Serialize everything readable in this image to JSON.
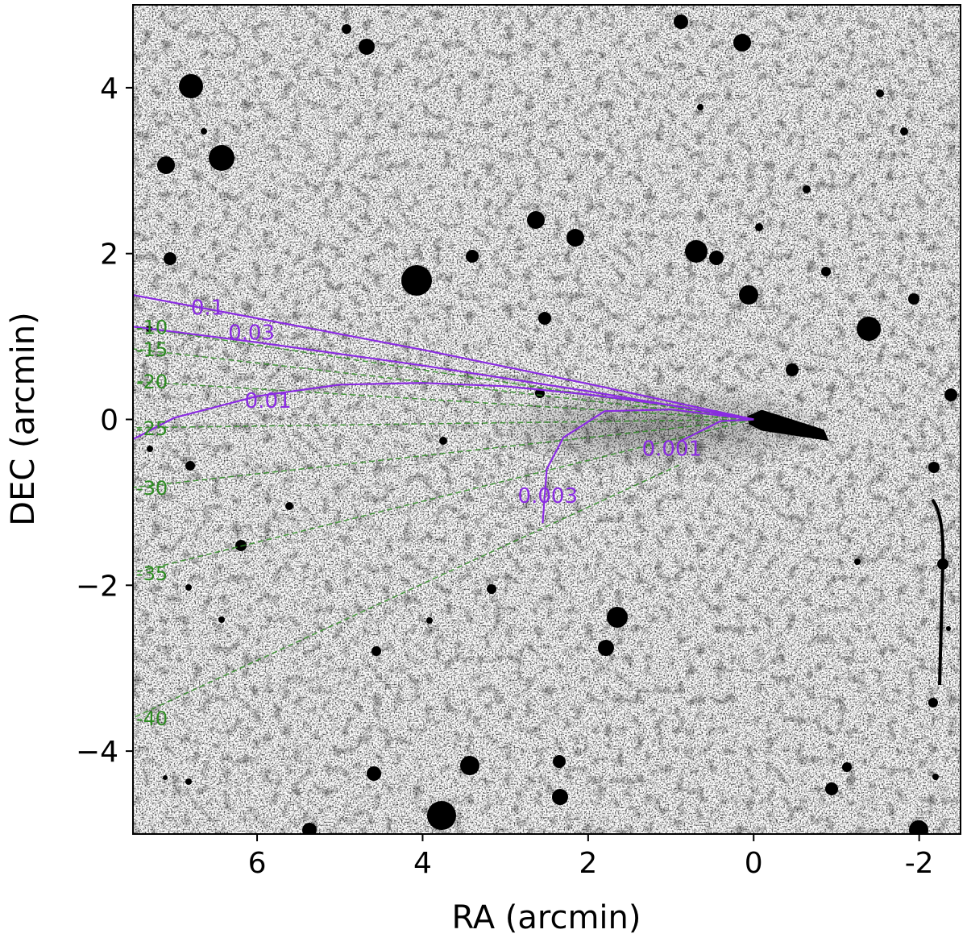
{
  "chart_data": {
    "type": "scatter",
    "xlabel": "RA (arcmin)",
    "ylabel": "DEC (arcmin)",
    "xlim": [
      7.5,
      -2.5
    ],
    "ylim": [
      -5,
      5
    ],
    "x_reversed": true,
    "xticks": [
      {
        "value": 6,
        "label": "6"
      },
      {
        "value": 4,
        "label": "4"
      },
      {
        "value": 2,
        "label": "2"
      },
      {
        "value": 0,
        "label": "0"
      },
      {
        "value": -2,
        "label": "-2"
      }
    ],
    "yticks": [
      {
        "value": 4,
        "label": "4"
      },
      {
        "value": 2,
        "label": "2"
      },
      {
        "value": 0,
        "label": "0"
      },
      {
        "value": -2,
        "label": "−2"
      },
      {
        "value": -4,
        "label": "−4"
      }
    ],
    "grid": false,
    "background": "grayscale inverted sky image (black stars on white)",
    "comet_tail": {
      "from": [
        0,
        0
      ],
      "to": [
        -0.85,
        -0.2
      ]
    },
    "syndynes": [
      {
        "label": "0.1",
        "color": "#8a2be2",
        "points": [
          [
            0,
            0
          ],
          [
            2,
            0.43
          ],
          [
            4,
            0.84
          ],
          [
            6,
            1.22
          ],
          [
            7.5,
            1.5
          ]
        ],
        "label_at": [
          6.8,
          1.35
        ]
      },
      {
        "label": "0.03",
        "color": "#8a2be2",
        "points": [
          [
            0,
            0
          ],
          [
            2,
            0.34
          ],
          [
            4,
            0.65
          ],
          [
            6,
            0.93
          ],
          [
            7.5,
            1.12
          ]
        ],
        "label_at": [
          6.35,
          1.05
        ]
      },
      {
        "label": "0.01",
        "color": "#8a2be2",
        "points": [
          [
            0,
            0
          ],
          [
            1,
            0.17
          ],
          [
            2,
            0.3
          ],
          [
            3,
            0.4
          ],
          [
            4,
            0.44
          ],
          [
            5,
            0.42
          ],
          [
            6,
            0.28
          ],
          [
            7,
            0.02
          ],
          [
            7.5,
            -0.24
          ]
        ],
        "label_at": [
          6.15,
          0.23
        ]
      },
      {
        "label": "0.003",
        "color": "#8a2be2",
        "points": [
          [
            0,
            0
          ],
          [
            1,
            0.12
          ],
          [
            1.8,
            0.1
          ],
          [
            2.3,
            -0.22
          ],
          [
            2.5,
            -0.6
          ],
          [
            2.55,
            -1.25
          ]
        ],
        "label_at": [
          2.85,
          -0.92
        ]
      },
      {
        "label": "0.001",
        "color": "#8a2be2",
        "points": [
          [
            0,
            0
          ],
          [
            0.4,
            -0.02
          ],
          [
            0.9,
            -0.27
          ]
        ],
        "label_at": [
          1.35,
          -0.35
        ]
      }
    ],
    "synchrones": [
      {
        "label": "-10",
        "color": "#2e8b22",
        "points": [
          [
            0,
            0
          ],
          [
            7.5,
            1.12
          ]
        ]
      },
      {
        "label": "-15",
        "color": "#2e8b22",
        "points": [
          [
            0,
            0
          ],
          [
            7.5,
            0.85
          ]
        ]
      },
      {
        "label": "-20",
        "color": "#2e8b22",
        "points": [
          [
            0,
            0
          ],
          [
            7.5,
            0.46
          ]
        ]
      },
      {
        "label": "-25",
        "color": "#2e8b22",
        "points": [
          [
            0,
            0
          ],
          [
            7.5,
            -0.1
          ]
        ]
      },
      {
        "label": "-30",
        "color": "#2e8b22",
        "points": [
          [
            0,
            0
          ],
          [
            7.5,
            -0.82
          ]
        ]
      },
      {
        "label": "-35",
        "color": "#2e8b22",
        "points": [
          [
            0,
            0
          ],
          [
            7.5,
            -1.85
          ]
        ]
      },
      {
        "label": "-40",
        "color": "#2e8b22",
        "points": [
          [
            0.9,
            -0.55
          ],
          [
            7.5,
            -3.6
          ]
        ]
      }
    ]
  }
}
